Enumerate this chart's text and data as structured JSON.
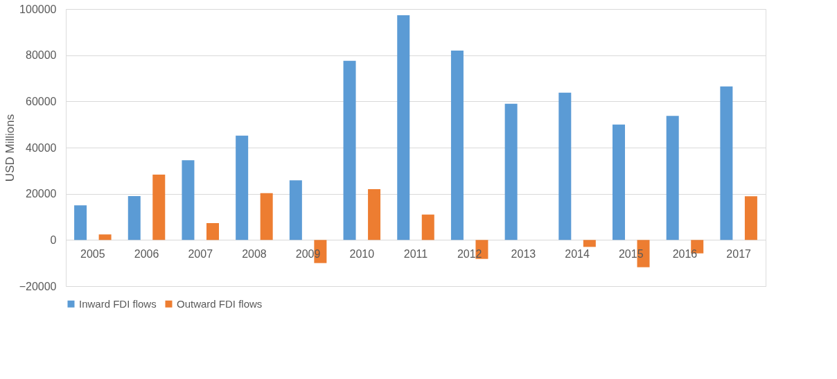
{
  "chart_data": {
    "type": "bar",
    "ylabel": "USD Millions",
    "categories": [
      "2005",
      "2006",
      "2007",
      "2008",
      "2009",
      "2010",
      "2011",
      "2012",
      "2013",
      "2014",
      "2015",
      "2016",
      "2017"
    ],
    "series": [
      {
        "name": "Inward FDI flows",
        "color": "#5b9bd5",
        "values": [
          15000,
          19000,
          34500,
          45200,
          25800,
          77600,
          97300,
          82000,
          59000,
          63800,
          50000,
          53700,
          66500
        ]
      },
      {
        "name": "Outward FDI flows",
        "color": "#ed7d31",
        "values": [
          2400,
          28300,
          7300,
          20300,
          -10000,
          22000,
          11000,
          -8200,
          null,
          -3000,
          -11800,
          -5800,
          18900
        ]
      }
    ],
    "ylim": [
      -20000,
      100000
    ],
    "yticks": [
      -20000,
      0,
      20000,
      40000,
      60000,
      80000,
      100000
    ],
    "grid": "y",
    "legend": "bottom"
  }
}
